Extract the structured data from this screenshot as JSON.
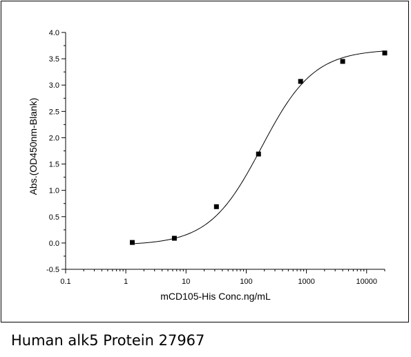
{
  "caption": "Human alk5 Protein 27967",
  "chart_data": {
    "type": "scatter",
    "title": "",
    "xlabel": "mCD105-His Conc.ng/mL",
    "ylabel": "Abs.(OD450nm-Blank)",
    "xscale": "log",
    "xlim": [
      0.1,
      20000
    ],
    "ylim": [
      -0.5,
      4.0
    ],
    "xticks": [
      0.1,
      1,
      10,
      100,
      1000,
      10000
    ],
    "xtick_labels": [
      "0.1",
      "1",
      "10",
      "100",
      "1000",
      "10000"
    ],
    "yticks": [
      -0.5,
      0.0,
      0.5,
      1.0,
      1.5,
      2.0,
      2.5,
      3.0,
      3.5,
      4.0
    ],
    "ytick_labels": [
      "-0.5",
      "0.0",
      "0.5",
      "1.0",
      "1.5",
      "2.0",
      "2.5",
      "3.0",
      "3.5",
      "4.0"
    ],
    "grid": false,
    "legend": "none",
    "marker_color": "#000000",
    "curve_color": "#000000",
    "fit": "four-parameter logistic",
    "series": [
      {
        "x": [
          1.28,
          6.4,
          32,
          160,
          800,
          4000,
          20000
        ],
        "y": [
          0.01,
          0.09,
          0.69,
          1.69,
          3.07,
          3.45,
          3.61
        ]
      }
    ],
    "fit_params": {
      "bottom": -0.04,
      "top": 3.68,
      "ec50": 180,
      "hill": 1.0
    }
  }
}
